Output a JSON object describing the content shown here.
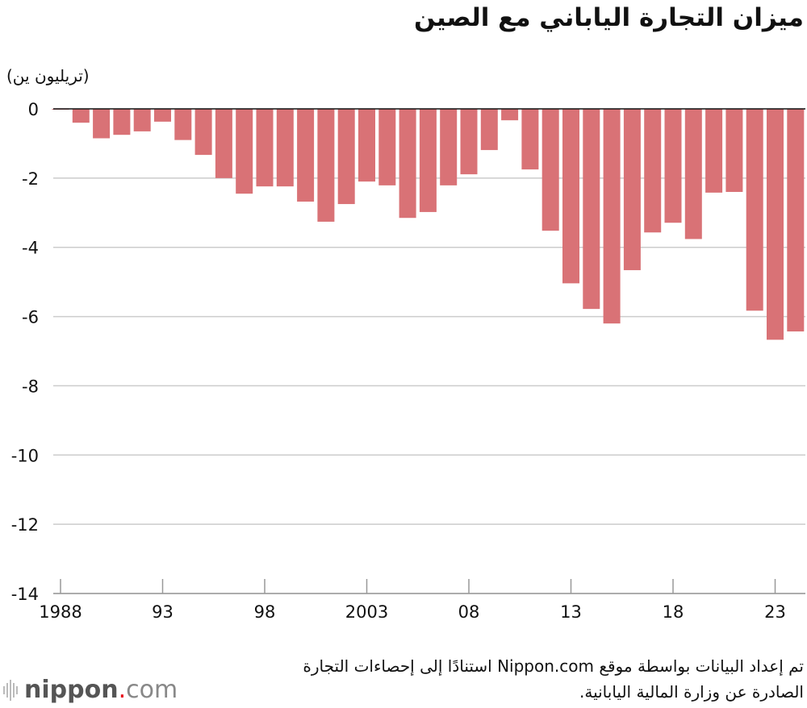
{
  "chart_data": {
    "type": "bar",
    "title": "ميزان التجارة الياباني مع الصين",
    "ylabel": "(تريليون ين)",
    "ylim": [
      -14,
      0
    ],
    "yticks": [
      0,
      -2,
      -4,
      -6,
      -8,
      -10,
      -12,
      -14
    ],
    "xtick_labels": [
      {
        "year": 1988,
        "label": "1988"
      },
      {
        "year": 1993,
        "label": "93"
      },
      {
        "year": 1998,
        "label": "98"
      },
      {
        "year": 2003,
        "label": "2003"
      },
      {
        "year": 2008,
        "label": "08"
      },
      {
        "year": 2013,
        "label": "13"
      },
      {
        "year": 2018,
        "label": "18"
      },
      {
        "year": 2023,
        "label": "23"
      }
    ],
    "x": [
      1988,
      1989,
      1990,
      1991,
      1992,
      1993,
      1994,
      1995,
      1996,
      1997,
      1998,
      1999,
      2000,
      2001,
      2002,
      2003,
      2004,
      2005,
      2006,
      2007,
      2008,
      2009,
      2010,
      2011,
      2012,
      2013,
      2014,
      2015,
      2016,
      2017,
      2018,
      2019,
      2020,
      2021,
      2022,
      2023,
      2024
    ],
    "values": [
      -0.02,
      -0.4,
      -0.85,
      -0.75,
      -0.65,
      -0.37,
      -0.9,
      -1.33,
      -2.0,
      -2.45,
      -2.24,
      -2.24,
      -2.68,
      -3.26,
      -2.75,
      -2.1,
      -2.21,
      -3.15,
      -2.98,
      -2.21,
      -1.89,
      -1.19,
      -0.33,
      -1.75,
      -3.52,
      -5.04,
      -5.78,
      -6.2,
      -4.66,
      -3.57,
      -3.29,
      -3.76,
      -2.42,
      -2.4,
      -5.83,
      -6.67,
      -6.43
    ],
    "bar_color": "#d97276",
    "grid": true
  },
  "source": [
    "تم إعداد البيانات بواسطة موقع Nippon.com استنادًا إلى إحصاءات التجارة",
    "الصادرة عن وزارة المالية اليابانية."
  ],
  "logo": {
    "name": "nippon",
    "dot": ".",
    "suffix": "com",
    "accent": "#e60012"
  }
}
